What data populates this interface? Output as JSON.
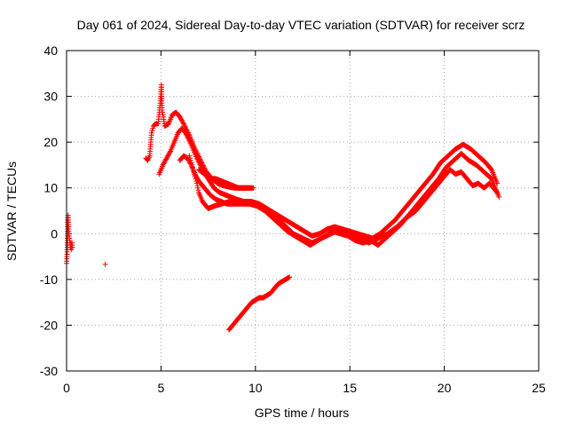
{
  "chart_data": {
    "type": "scatter",
    "title": "Day 061 of 2024, Sidereal Day-to-day VTEC variation (SDTVAR) for receiver scrz",
    "xlabel": "GPS time / hours",
    "ylabel": "SDTVAR / TECUs",
    "xlim": [
      0,
      25
    ],
    "ylim": [
      -30,
      40
    ],
    "xticks": [
      0,
      5,
      10,
      15,
      20,
      25
    ],
    "yticks": [
      -30,
      -20,
      -10,
      0,
      10,
      20,
      30,
      40
    ],
    "xtick_labels": [
      "0",
      "5",
      "10",
      "15",
      "20",
      "25"
    ],
    "ytick_labels": [
      "-30",
      "-20",
      "-10",
      "0",
      "10",
      "20",
      "30",
      "40"
    ],
    "grid": true,
    "marker": "+",
    "color": "#ff0000",
    "series": [
      {
        "name": "early-spike",
        "points": [
          [
            0.0,
            -6.5
          ],
          [
            0.02,
            -5
          ],
          [
            0.04,
            -3
          ],
          [
            0.05,
            -1
          ],
          [
            0.06,
            1
          ],
          [
            0.06,
            2.5
          ],
          [
            0.07,
            3.5
          ],
          [
            0.08,
            4
          ],
          [
            0.1,
            2
          ],
          [
            0.12,
            0
          ],
          [
            0.15,
            -1
          ],
          [
            0.18,
            -2
          ],
          [
            0.2,
            -3
          ],
          [
            0.22,
            -2
          ],
          [
            0.25,
            -3.5
          ],
          [
            0.28,
            -2
          ],
          [
            0.3,
            -3
          ]
        ]
      },
      {
        "name": "isolated",
        "points": [
          [
            2.05,
            -6.7
          ]
        ]
      },
      {
        "name": "trace-a",
        "points": [
          [
            4.2,
            16.5
          ],
          [
            4.3,
            16
          ],
          [
            4.4,
            17
          ],
          [
            4.5,
            22
          ],
          [
            4.6,
            23.5
          ],
          [
            4.7,
            24
          ],
          [
            4.85,
            24
          ],
          [
            4.95,
            28
          ],
          [
            5.0,
            31
          ],
          [
            5.02,
            32.5
          ],
          [
            5.05,
            27
          ],
          [
            5.1,
            26
          ],
          [
            5.2,
            23.5
          ],
          [
            5.4,
            24
          ],
          [
            5.6,
            26
          ],
          [
            5.8,
            26.5
          ],
          [
            6.0,
            25.5
          ],
          [
            6.2,
            24
          ],
          [
            6.5,
            21.5
          ],
          [
            6.8,
            18.5
          ],
          [
            7.1,
            16
          ],
          [
            7.4,
            13.5
          ],
          [
            7.7,
            12
          ],
          [
            8.0,
            11
          ],
          [
            8.3,
            10.5
          ],
          [
            8.6,
            10.2
          ],
          [
            8.9,
            10
          ],
          [
            9.2,
            10
          ],
          [
            9.5,
            10
          ],
          [
            9.9,
            10
          ]
        ]
      },
      {
        "name": "trace-b",
        "points": [
          [
            4.9,
            13
          ],
          [
            5.0,
            14
          ],
          [
            5.1,
            15
          ],
          [
            5.3,
            16.5
          ],
          [
            5.5,
            18
          ],
          [
            5.7,
            20
          ],
          [
            5.9,
            22
          ],
          [
            6.1,
            23
          ],
          [
            6.3,
            22
          ],
          [
            6.6,
            19.5
          ],
          [
            6.9,
            16.5
          ],
          [
            7.2,
            14
          ],
          [
            7.5,
            12
          ],
          [
            7.8,
            10
          ],
          [
            8.1,
            9
          ],
          [
            8.4,
            8.5
          ],
          [
            8.7,
            8
          ],
          [
            9.0,
            7.5
          ],
          [
            9.4,
            7
          ],
          [
            9.8,
            7
          ],
          [
            10.2,
            6.5
          ],
          [
            10.6,
            5.5
          ],
          [
            11.0,
            4.5
          ],
          [
            11.4,
            3.5
          ],
          [
            11.8,
            2.5
          ],
          [
            12.2,
            1.5
          ],
          [
            12.6,
            0.5
          ],
          [
            13.0,
            -0.5
          ],
          [
            13.4,
            0
          ],
          [
            13.8,
            1
          ],
          [
            14.2,
            1.5
          ],
          [
            14.6,
            1
          ],
          [
            15.0,
            0.5
          ],
          [
            15.4,
            0
          ],
          [
            15.8,
            -0.5
          ],
          [
            16.2,
            -1
          ],
          [
            16.6,
            0
          ],
          [
            17.0,
            1.5
          ],
          [
            17.4,
            3
          ],
          [
            17.8,
            5
          ],
          [
            18.2,
            7
          ],
          [
            18.6,
            9
          ],
          [
            19.0,
            11
          ],
          [
            19.4,
            13
          ],
          [
            19.8,
            15.5
          ],
          [
            20.2,
            17
          ],
          [
            20.6,
            18.5
          ],
          [
            21.0,
            19.5
          ],
          [
            21.4,
            18.5
          ],
          [
            21.8,
            17
          ],
          [
            22.2,
            15.5
          ],
          [
            22.5,
            14
          ],
          [
            22.8,
            11
          ]
        ]
      },
      {
        "name": "trace-c",
        "points": [
          [
            6.0,
            16
          ],
          [
            6.2,
            17
          ],
          [
            6.4,
            16.5
          ],
          [
            6.6,
            15
          ],
          [
            6.8,
            13
          ],
          [
            7.0,
            11.5
          ],
          [
            7.2,
            10.5
          ],
          [
            7.4,
            9.5
          ],
          [
            7.6,
            8.5
          ],
          [
            7.9,
            7.5
          ],
          [
            8.2,
            7
          ],
          [
            8.5,
            6.5
          ],
          [
            8.9,
            6.5
          ],
          [
            9.3,
            6.5
          ],
          [
            9.7,
            6.5
          ],
          [
            10.1,
            6
          ],
          [
            10.5,
            5
          ],
          [
            10.9,
            3.5
          ],
          [
            11.3,
            2
          ],
          [
            11.7,
            0.5
          ],
          [
            12.1,
            -0.5
          ],
          [
            12.5,
            -1.5
          ],
          [
            12.9,
            -2.5
          ],
          [
            13.3,
            -1.5
          ],
          [
            13.7,
            -0.5
          ],
          [
            14.1,
            0.5
          ],
          [
            14.5,
            0
          ],
          [
            14.9,
            -0.5
          ],
          [
            15.3,
            -1.5
          ],
          [
            15.7,
            -2
          ],
          [
            16.1,
            -1.5
          ],
          [
            16.5,
            -2.5
          ],
          [
            16.9,
            -1
          ],
          [
            17.3,
            0.5
          ],
          [
            17.7,
            2
          ],
          [
            18.1,
            4
          ],
          [
            18.5,
            6
          ],
          [
            18.9,
            8
          ],
          [
            19.3,
            10
          ],
          [
            19.7,
            12
          ],
          [
            20.1,
            14.5
          ],
          [
            20.5,
            16
          ],
          [
            20.9,
            17.5
          ],
          [
            21.3,
            16
          ],
          [
            21.7,
            15
          ],
          [
            22.1,
            13.5
          ],
          [
            22.5,
            12
          ],
          [
            22.9,
            8
          ]
        ]
      },
      {
        "name": "trace-d",
        "points": [
          [
            6.5,
            17
          ],
          [
            6.7,
            14
          ],
          [
            6.9,
            11
          ],
          [
            7.0,
            9
          ],
          [
            7.2,
            7
          ],
          [
            7.5,
            5.5
          ],
          [
            7.8,
            6
          ],
          [
            8.2,
            6.5
          ],
          [
            8.6,
            7
          ],
          [
            9.0,
            7
          ],
          [
            9.4,
            7
          ],
          [
            9.8,
            6.5
          ],
          [
            10.2,
            6
          ],
          [
            10.6,
            5
          ],
          [
            11.0,
            4
          ],
          [
            11.5,
            2
          ],
          [
            12.0,
            0
          ],
          [
            12.5,
            -1
          ],
          [
            13.0,
            -2
          ],
          [
            13.5,
            -1
          ],
          [
            14.0,
            0
          ],
          [
            14.5,
            1
          ],
          [
            15.0,
            0
          ],
          [
            15.5,
            -1
          ],
          [
            16.0,
            -2
          ],
          [
            16.5,
            -1
          ],
          [
            17.0,
            0
          ],
          [
            17.5,
            1.5
          ],
          [
            18.0,
            3.5
          ],
          [
            18.5,
            5
          ],
          [
            19.0,
            7.5
          ],
          [
            19.5,
            10
          ],
          [
            20.0,
            12.5
          ],
          [
            20.3,
            14
          ],
          [
            20.6,
            13
          ],
          [
            20.9,
            13.5
          ],
          [
            21.2,
            12
          ],
          [
            21.5,
            10.5
          ],
          [
            21.8,
            11
          ],
          [
            22.1,
            10
          ],
          [
            22.4,
            11
          ],
          [
            22.8,
            9
          ]
        ]
      },
      {
        "name": "trace-e",
        "points": [
          [
            7.0,
            14
          ],
          [
            7.3,
            13
          ],
          [
            7.6,
            12
          ],
          [
            7.9,
            12
          ],
          [
            8.2,
            11.5
          ],
          [
            8.5,
            11
          ],
          [
            8.8,
            10.5
          ],
          [
            9.1,
            10
          ],
          [
            9.4,
            10
          ],
          [
            9.7,
            10
          ]
        ]
      },
      {
        "name": "trace-f",
        "points": [
          [
            8.6,
            -21
          ],
          [
            8.8,
            -20
          ],
          [
            9.0,
            -19
          ],
          [
            9.2,
            -18
          ],
          [
            9.4,
            -17
          ],
          [
            9.6,
            -16
          ],
          [
            9.8,
            -15
          ],
          [
            10.0,
            -14.5
          ],
          [
            10.2,
            -14
          ],
          [
            10.4,
            -14
          ],
          [
            10.6,
            -13.5
          ],
          [
            10.8,
            -13
          ],
          [
            11.0,
            -12
          ],
          [
            11.2,
            -11
          ],
          [
            11.4,
            -10.5
          ],
          [
            11.6,
            -10
          ],
          [
            11.8,
            -9.5
          ]
        ]
      }
    ]
  }
}
